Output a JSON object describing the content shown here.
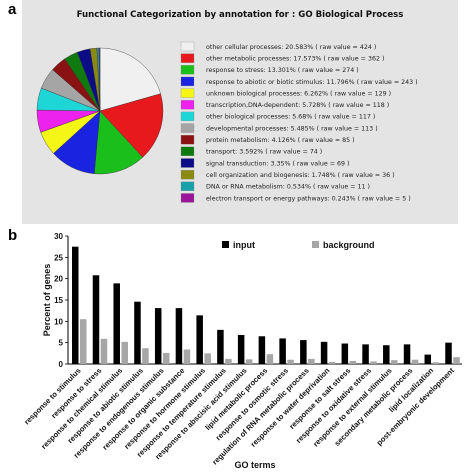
{
  "panel_a_letter": "a",
  "panel_b_letter": "b",
  "chart_data": [
    {
      "type": "pie",
      "title": "Functional Categorization by annotation for : GO Biological Process",
      "slices": [
        {
          "label": "other cellular processes: 20.583% ( raw value = 424 )",
          "value": 20.583,
          "color": "#f0f0f0"
        },
        {
          "label": "other metabolic processes: 17.573% ( raw value = 362 )",
          "value": 17.573,
          "color": "#e8191c"
        },
        {
          "label": "response to stress: 13.301% ( raw value = 274 )",
          "value": 13.301,
          "color": "#1bbf1b"
        },
        {
          "label": "response to abiotic or biotic stimulus: 11.796% ( raw value = 243 )",
          "value": 11.796,
          "color": "#1a23e0"
        },
        {
          "label": "unknown biological processes: 6.262% ( raw value = 129 )",
          "value": 6.262,
          "color": "#f5f516"
        },
        {
          "label": "transcription,DNA-dependent: 5.728% ( raw value = 118 )",
          "value": 5.728,
          "color": "#ee22ee"
        },
        {
          "label": "other biological processes: 5.68% ( raw value = 117 )",
          "value": 5.68,
          "color": "#1ed6d6"
        },
        {
          "label": "developmental processes: 5.485% ( raw value = 113 )",
          "value": 5.485,
          "color": "#a5a5a5"
        },
        {
          "label": "protein metabolism: 4.126% ( raw value = 85 )",
          "value": 4.126,
          "color": "#8b1212"
        },
        {
          "label": "transport: 3.592% ( raw value = 74 )",
          "value": 3.592,
          "color": "#0f7a0f"
        },
        {
          "label": "signal transduction: 3.35% ( raw value = 69 )",
          "value": 3.35,
          "color": "#0c0c86"
        },
        {
          "label": "cell organization and biogenesis: 1.748% ( raw value = 36 )",
          "value": 1.748,
          "color": "#8a8a12"
        },
        {
          "label": "DNA or RNA metabolism: 0.534% ( raw value = 11 )",
          "value": 0.534,
          "color": "#16a0a8"
        },
        {
          "label": "electron transport or energy pathways: 0.243% ( raw value = 5 )",
          "value": 0.243,
          "color": "#9b159b"
        }
      ]
    },
    {
      "type": "bar",
      "xlabel": "GO terms",
      "ylabel": "Percent of genes",
      "ylim": [
        0,
        30
      ],
      "yticks": [
        0,
        5,
        10,
        15,
        20,
        25,
        30
      ],
      "categories": [
        "response to stimulus",
        "response to stress",
        "response to chemical stimulus",
        "response to abiotic stimulus",
        "response to endogenous stimulus",
        "response to organic substance",
        "response to hormone stimulus",
        "response to temperature stimulus",
        "response to abscisic acid stimulus",
        "lipid metabolic process",
        "response to osmotic stress",
        "regulation of RNA metabolic process",
        "response to water deprivation",
        "response to salt stress",
        "response to oxidative stress",
        "response to external stimulus",
        "secondary metabolic process",
        "lipid localization",
        "post-embryonic development"
      ],
      "series": [
        {
          "name": "input",
          "color": "#000000",
          "values": [
            27.5,
            20.8,
            18.9,
            14.6,
            13.1,
            13.1,
            11.4,
            8.0,
            6.8,
            6.5,
            6.0,
            5.6,
            5.2,
            4.8,
            4.6,
            4.4,
            4.6,
            2.2,
            5.0
          ]
        },
        {
          "name": "background",
          "color": "#a6a6a6",
          "values": [
            10.5,
            5.9,
            5.2,
            3.7,
            2.6,
            3.4,
            2.5,
            1.2,
            1.1,
            2.3,
            1.0,
            1.2,
            0.5,
            0.7,
            0.6,
            0.9,
            1.0,
            0.4,
            1.6
          ]
        }
      ],
      "legend_position": "top"
    }
  ]
}
